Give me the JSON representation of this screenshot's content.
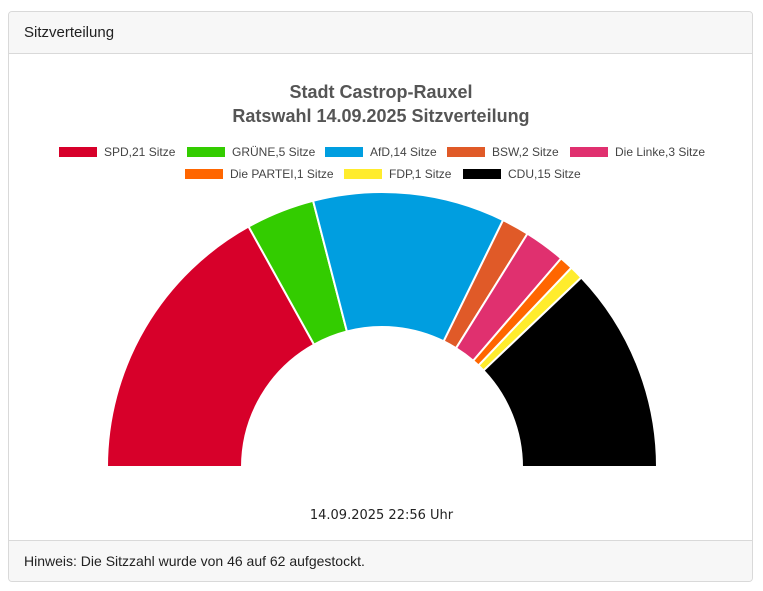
{
  "panel": {
    "header": "Sitzverteilung",
    "timestamp": "14.09.2025 22:56 Uhr",
    "footer_note": "Hinweis: Die Sitzzahl wurde von 46 auf 62 aufgestockt."
  },
  "chart_data": {
    "type": "pie",
    "variant": "semicircle-donut",
    "title_lines": [
      "Stadt Castrop-Rauxel",
      "Ratswahl 14.09.2025 Sitzverteilung"
    ],
    "legend_position": "top",
    "categories": [
      "SPD",
      "GRÜNE",
      "AfD",
      "BSW",
      "Die Linke",
      "Die PARTEI",
      "FDP",
      "CDU"
    ],
    "values": [
      21,
      5,
      14,
      2,
      3,
      1,
      1,
      15
    ],
    "legend_labels": [
      "SPD,21 Sitze",
      "GRÜNE,5 Sitze",
      "AfD,14 Sitze",
      "BSW,2 Sitze",
      "Die Linke,3 Sitze",
      "Die PARTEI,1 Sitze",
      "FDP,1 Sitze",
      "CDU,15 Sitze"
    ],
    "colors": [
      "#d7002a",
      "#33cc00",
      "#009ee0",
      "#e05a28",
      "#e0306f",
      "#ff6600",
      "#ffec2d",
      "#000000"
    ],
    "total": 62
  }
}
